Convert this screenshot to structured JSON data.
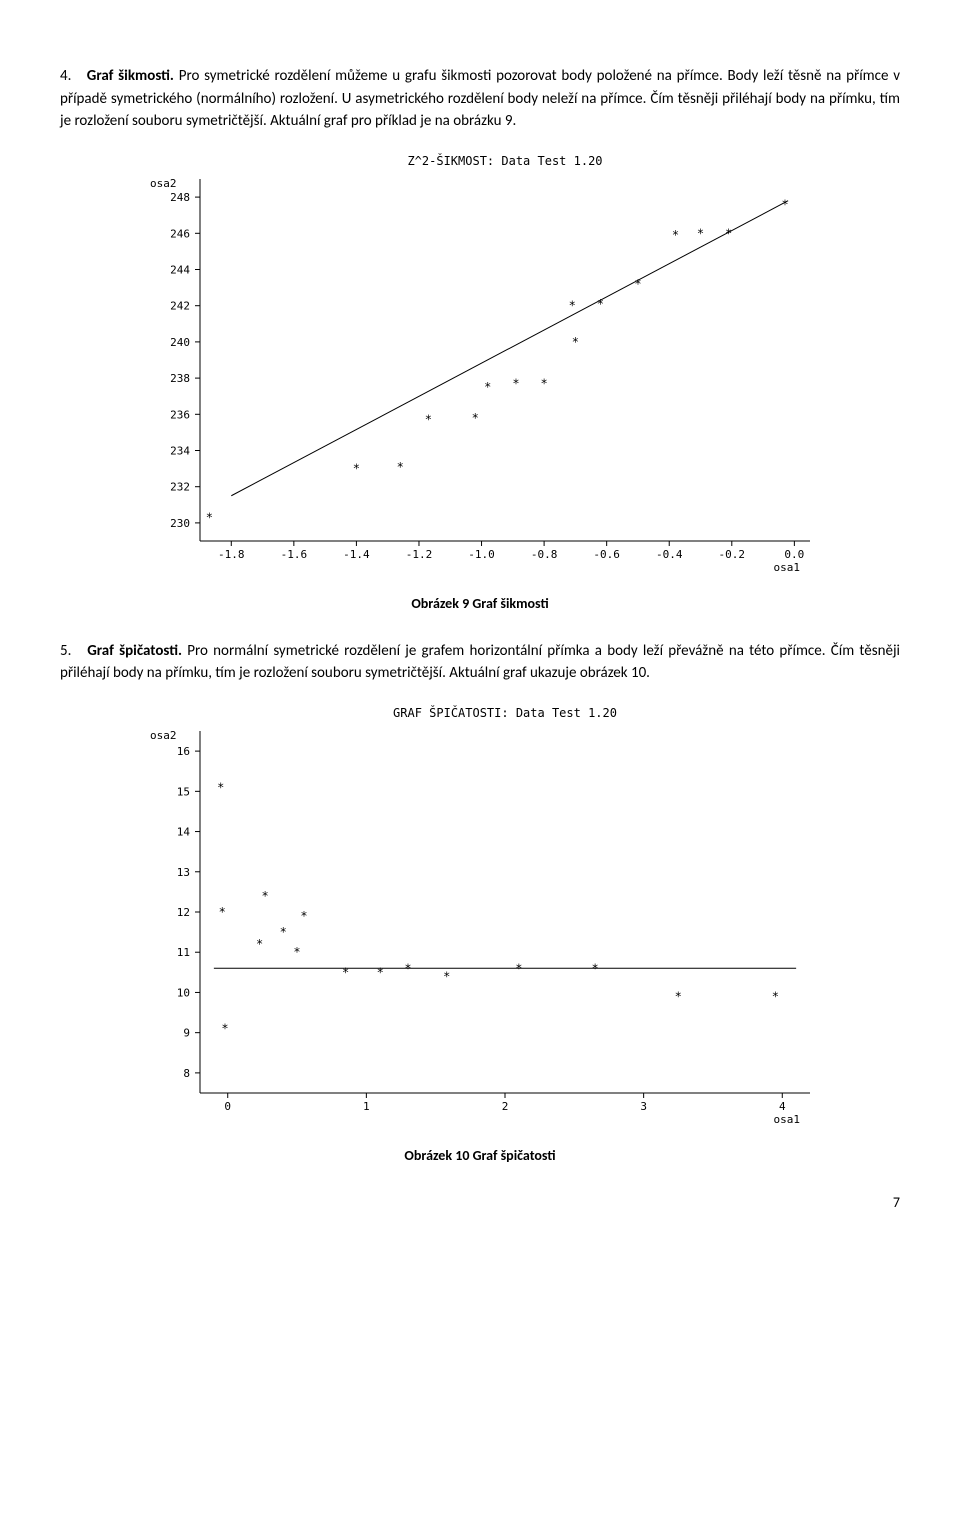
{
  "section4": {
    "number": "4.",
    "title": "Graf šikmosti.",
    "body": "Pro symetrické rozdělení můžeme u grafu šikmosti pozorovat body položené na přímce. Body leží těsně na přímce v případě symetrického (normálního) rozložení. U asymetrického rozdělení body neleží na přímce. Čím těsněji přiléhají body na přímku, tím je rozložení souboru symetričtější. Aktuální graf pro příklad je na obrázku 9."
  },
  "chart1": {
    "title": "Z^2-ŠIKMOST: Data Test 1.20",
    "ylabel": "osa2",
    "xlabel": "osa1",
    "xticks": [
      "-1.8",
      "-1.6",
      "-1.4",
      "-1.2",
      "-1.0",
      "-0.8",
      "-0.6",
      "-0.4",
      "-0.2",
      "0.0"
    ],
    "yticks": [
      "230",
      "232",
      "234",
      "236",
      "238",
      "240",
      "242",
      "244",
      "246",
      "248"
    ],
    "xlim": [
      -1.9,
      0.05
    ],
    "ylim": [
      229,
      249
    ],
    "points": [
      [
        -1.87,
        230.3
      ],
      [
        -1.4,
        233.0
      ],
      [
        -1.26,
        233.1
      ],
      [
        -1.17,
        235.7
      ],
      [
        -1.02,
        235.8
      ],
      [
        -0.98,
        237.5
      ],
      [
        -0.89,
        237.7
      ],
      [
        -0.8,
        237.7
      ],
      [
        -0.7,
        240.0
      ],
      [
        -0.71,
        242.0
      ],
      [
        -0.62,
        242.1
      ],
      [
        -0.5,
        243.2
      ],
      [
        -0.38,
        245.9
      ],
      [
        -0.3,
        246.0
      ],
      [
        -0.21,
        246.0
      ],
      [
        -0.03,
        247.6
      ]
    ],
    "line": {
      "x1": -1.8,
      "y1": 231.5,
      "x2": -0.02,
      "y2": 247.8
    },
    "tick_fontsize": 11,
    "font": "Consolas, monospace",
    "bg": "#ffffff",
    "axis_color": "#000000",
    "marker": "star",
    "marker_size": 5
  },
  "caption1": "Obrázek 9 Graf šikmosti",
  "section5": {
    "number": "5.",
    "title": "Graf špičatosti.",
    "body": "Pro normální symetrické rozdělení je grafem horizontální přímka a body leží převážně na této přímce. Čím těsněji přiléhají body na přímku, tím je rozložení souboru symetričtější. Aktuální graf ukazuje obrázek 10."
  },
  "chart2": {
    "title": "GRAF ŠPIČATOSTI: Data Test 1.20",
    "ylabel": "osa2",
    "xlabel": "osa1",
    "xticks": [
      "0",
      "1",
      "2",
      "3",
      "4"
    ],
    "yticks": [
      "8",
      "9",
      "10",
      "11",
      "12",
      "13",
      "14",
      "15",
      "16"
    ],
    "xlim": [
      -0.2,
      4.2
    ],
    "ylim": [
      7.5,
      16.5
    ],
    "points": [
      [
        -0.05,
        15.1
      ],
      [
        -0.04,
        12.0
      ],
      [
        -0.02,
        9.1
      ],
      [
        0.23,
        11.2
      ],
      [
        0.27,
        12.4
      ],
      [
        0.4,
        11.5
      ],
      [
        0.5,
        11.0
      ],
      [
        0.55,
        11.9
      ],
      [
        0.85,
        10.5
      ],
      [
        1.1,
        10.5
      ],
      [
        1.3,
        10.6
      ],
      [
        1.58,
        10.4
      ],
      [
        2.1,
        10.6
      ],
      [
        2.65,
        10.6
      ],
      [
        3.25,
        9.9
      ],
      [
        3.95,
        9.9
      ]
    ],
    "line": {
      "x1": -0.1,
      "y1": 10.6,
      "x2": 4.1,
      "y2": 10.6
    },
    "tick_fontsize": 11,
    "font": "Consolas, monospace",
    "bg": "#ffffff",
    "axis_color": "#000000",
    "marker": "star",
    "marker_size": 5
  },
  "caption2": "Obrázek 10 Graf špičatosti",
  "page_number": "7"
}
